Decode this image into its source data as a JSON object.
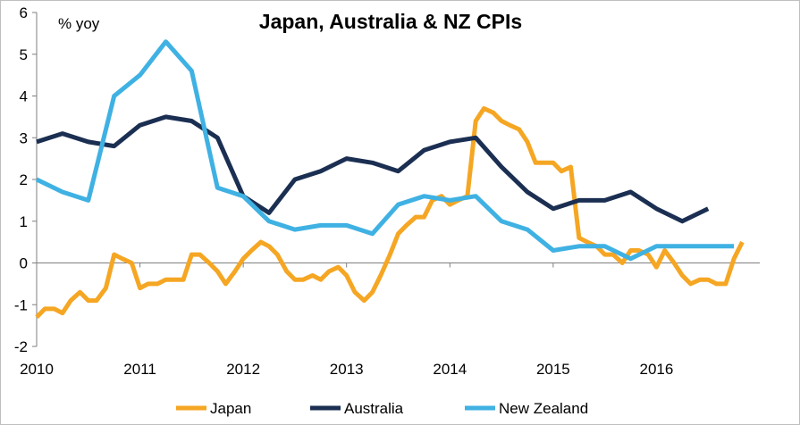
{
  "chart_data": {
    "type": "line",
    "title": "Japan, Australia & NZ CPIs",
    "ylabel": "% yoy",
    "xlabel": "",
    "xlim": [
      2010,
      2017.0
    ],
    "ylim": [
      -2,
      6
    ],
    "yticks": [
      -2,
      -1,
      0,
      1,
      2,
      3,
      4,
      5,
      6
    ],
    "xticks": [
      2010,
      2011,
      2012,
      2013,
      2014,
      2015,
      2016
    ],
    "xtick_labels": [
      "2010",
      "2011",
      "2012",
      "2013",
      "2014",
      "2015",
      "2016"
    ],
    "legend": "bottom",
    "grid": false,
    "series": [
      {
        "name": "Japan",
        "color": "#F5A623",
        "points": [
          [
            2010.0,
            -1.3
          ],
          [
            2010.08,
            -1.1
          ],
          [
            2010.17,
            -1.1
          ],
          [
            2010.25,
            -1.2
          ],
          [
            2010.33,
            -0.9
          ],
          [
            2010.42,
            -0.7
          ],
          [
            2010.5,
            -0.9
          ],
          [
            2010.58,
            -0.9
          ],
          [
            2010.67,
            -0.6
          ],
          [
            2010.75,
            0.2
          ],
          [
            2010.83,
            0.1
          ],
          [
            2010.92,
            0.0
          ],
          [
            2011.0,
            -0.6
          ],
          [
            2011.08,
            -0.5
          ],
          [
            2011.17,
            -0.5
          ],
          [
            2011.25,
            -0.4
          ],
          [
            2011.33,
            -0.4
          ],
          [
            2011.42,
            -0.4
          ],
          [
            2011.5,
            0.2
          ],
          [
            2011.58,
            0.2
          ],
          [
            2011.67,
            0.0
          ],
          [
            2011.75,
            -0.2
          ],
          [
            2011.83,
            -0.5
          ],
          [
            2011.92,
            -0.2
          ],
          [
            2012.0,
            0.1
          ],
          [
            2012.08,
            0.3
          ],
          [
            2012.17,
            0.5
          ],
          [
            2012.25,
            0.4
          ],
          [
            2012.33,
            0.2
          ],
          [
            2012.42,
            -0.2
          ],
          [
            2012.5,
            -0.4
          ],
          [
            2012.58,
            -0.4
          ],
          [
            2012.67,
            -0.3
          ],
          [
            2012.75,
            -0.4
          ],
          [
            2012.83,
            -0.2
          ],
          [
            2012.92,
            -0.1
          ],
          [
            2013.0,
            -0.3
          ],
          [
            2013.08,
            -0.7
          ],
          [
            2013.17,
            -0.9
          ],
          [
            2013.25,
            -0.7
          ],
          [
            2013.33,
            -0.3
          ],
          [
            2013.42,
            0.2
          ],
          [
            2013.5,
            0.7
          ],
          [
            2013.58,
            0.9
          ],
          [
            2013.67,
            1.1
          ],
          [
            2013.75,
            1.1
          ],
          [
            2013.83,
            1.5
          ],
          [
            2013.92,
            1.6
          ],
          [
            2014.0,
            1.4
          ],
          [
            2014.08,
            1.5
          ],
          [
            2014.17,
            1.6
          ],
          [
            2014.25,
            3.4
          ],
          [
            2014.33,
            3.7
          ],
          [
            2014.42,
            3.6
          ],
          [
            2014.5,
            3.4
          ],
          [
            2014.58,
            3.3
          ],
          [
            2014.67,
            3.2
          ],
          [
            2014.75,
            2.9
          ],
          [
            2014.83,
            2.4
          ],
          [
            2014.92,
            2.4
          ],
          [
            2015.0,
            2.4
          ],
          [
            2015.08,
            2.2
          ],
          [
            2015.17,
            2.3
          ],
          [
            2015.25,
            0.6
          ],
          [
            2015.33,
            0.5
          ],
          [
            2015.42,
            0.4
          ],
          [
            2015.5,
            0.2
          ],
          [
            2015.58,
            0.2
          ],
          [
            2015.67,
            0.0
          ],
          [
            2015.75,
            0.3
          ],
          [
            2015.83,
            0.3
          ],
          [
            2015.92,
            0.2
          ],
          [
            2016.0,
            -0.1
          ],
          [
            2016.08,
            0.3
          ],
          [
            2016.17,
            0.0
          ],
          [
            2016.25,
            -0.3
          ],
          [
            2016.33,
            -0.5
          ],
          [
            2016.42,
            -0.4
          ],
          [
            2016.5,
            -0.4
          ],
          [
            2016.58,
            -0.5
          ],
          [
            2016.67,
            -0.5
          ],
          [
            2016.75,
            0.1
          ],
          [
            2016.83,
            0.5
          ]
        ]
      },
      {
        "name": "Australia",
        "color": "#1B2F52",
        "points": [
          [
            2010.0,
            2.9
          ],
          [
            2010.25,
            3.1
          ],
          [
            2010.5,
            2.9
          ],
          [
            2010.75,
            2.8
          ],
          [
            2011.0,
            3.3
          ],
          [
            2011.25,
            3.5
          ],
          [
            2011.5,
            3.4
          ],
          [
            2011.75,
            3.0
          ],
          [
            2012.0,
            1.6
          ],
          [
            2012.25,
            1.2
          ],
          [
            2012.5,
            2.0
          ],
          [
            2012.75,
            2.2
          ],
          [
            2013.0,
            2.5
          ],
          [
            2013.25,
            2.4
          ],
          [
            2013.5,
            2.2
          ],
          [
            2013.75,
            2.7
          ],
          [
            2014.0,
            2.9
          ],
          [
            2014.25,
            3.0
          ],
          [
            2014.5,
            2.3
          ],
          [
            2014.75,
            1.7
          ],
          [
            2015.0,
            1.3
          ],
          [
            2015.25,
            1.5
          ],
          [
            2015.5,
            1.5
          ],
          [
            2015.75,
            1.7
          ],
          [
            2016.0,
            1.3
          ],
          [
            2016.25,
            1.0
          ],
          [
            2016.5,
            1.3
          ]
        ]
      },
      {
        "name": "New Zealand",
        "color": "#3FB1E3",
        "points": [
          [
            2010.0,
            2.0
          ],
          [
            2010.25,
            1.7
          ],
          [
            2010.5,
            1.5
          ],
          [
            2010.75,
            4.0
          ],
          [
            2011.0,
            4.5
          ],
          [
            2011.25,
            5.3
          ],
          [
            2011.5,
            4.6
          ],
          [
            2011.75,
            1.8
          ],
          [
            2012.0,
            1.6
          ],
          [
            2012.25,
            1.0
          ],
          [
            2012.5,
            0.8
          ],
          [
            2012.75,
            0.9
          ],
          [
            2013.0,
            0.9
          ],
          [
            2013.25,
            0.7
          ],
          [
            2013.5,
            1.4
          ],
          [
            2013.75,
            1.6
          ],
          [
            2014.0,
            1.5
          ],
          [
            2014.25,
            1.6
          ],
          [
            2014.5,
            1.0
          ],
          [
            2014.75,
            0.8
          ],
          [
            2015.0,
            0.3
          ],
          [
            2015.25,
            0.4
          ],
          [
            2015.5,
            0.4
          ],
          [
            2015.75,
            0.1
          ],
          [
            2016.0,
            0.4
          ],
          [
            2016.25,
            0.4
          ],
          [
            2016.5,
            0.4
          ],
          [
            2016.75,
            0.4
          ]
        ]
      }
    ]
  }
}
